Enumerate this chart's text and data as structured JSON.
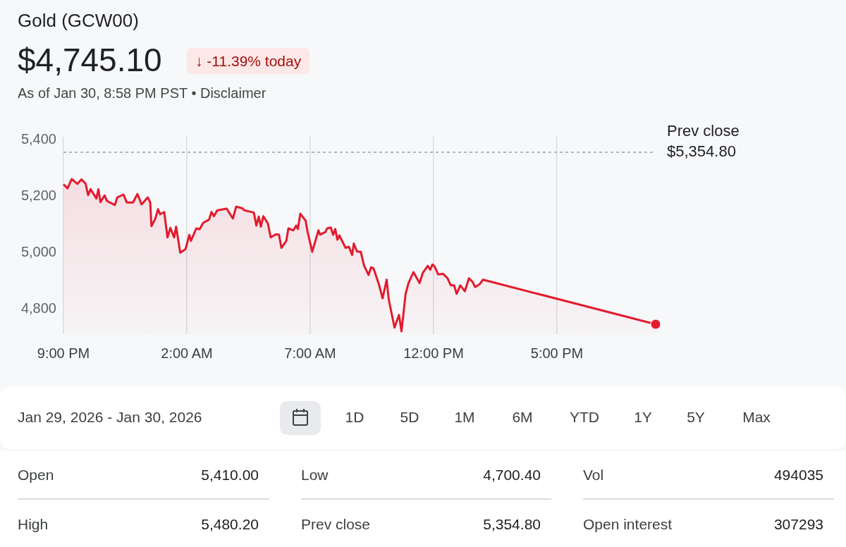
{
  "chart_data": {
    "type": "area",
    "title": "Gold (GCW00)",
    "subtitle": "$4,745.10",
    "annotations": [
      "↓ -11.39% today",
      "As of Jan 30, 8:58 PM PST • Disclaimer",
      "Jan 29, 2026 - Jan 30, 2026",
      "1D",
      "5D",
      "1M",
      "6M",
      "YTD",
      "1Y",
      "5Y",
      "Max",
      "Open",
      "5,410.00",
      "Low",
      "4,700.40",
      "Vol",
      "494035",
      "High",
      "5,480.20",
      "Prev close",
      "5,354.80",
      "Open interest",
      "307293"
    ],
    "xlim": [
      "2026-01-29T21:00",
      "2026-01-30T21:00"
    ],
    "xticks": [
      {
        "value": "2026-01-29T21:00",
        "label": "9:00 PM"
      },
      {
        "value": "2026-01-30T02:00",
        "label": "2:00 AM"
      },
      {
        "value": "2026-01-30T07:00",
        "label": "7:00 AM"
      },
      {
        "value": "2026-01-30T12:00",
        "label": "12:00 PM"
      },
      {
        "value": "2026-01-30T17:00",
        "label": "5:00 PM"
      }
    ],
    "ylim": [
      4710,
      5410
    ],
    "yticks": [
      {
        "value": 4800,
        "label": "4,800"
      },
      {
        "value": 5000,
        "label": "5,000"
      },
      {
        "value": 5200,
        "label": "5,200"
      },
      {
        "value": 5400,
        "label": "5,400"
      }
    ],
    "grid": "x",
    "legend": false,
    "ref_lines": [
      {
        "axis": "y",
        "value": 5354.8,
        "label": "Prev close\n$5,354.80",
        "color": "#9aa0a6",
        "line_style": "dashed"
      }
    ],
    "series": [
      {
        "color": "#e21b2d",
        "x": [
          "2026-01-29T21:00",
          "2026-01-29T21:10",
          "2026-01-29T21:20",
          "2026-01-29T21:34",
          "2026-01-29T21:44",
          "2026-01-29T21:54",
          "2026-01-29T22:00",
          "2026-01-29T22:06",
          "2026-01-29T22:20",
          "2026-01-29T22:25",
          "2026-01-29T22:30",
          "2026-01-29T22:40",
          "2026-01-29T22:46",
          "2026-01-29T23:05",
          "2026-01-29T23:11",
          "2026-01-29T23:26",
          "2026-01-29T23:34",
          "2026-01-29T23:49",
          "2026-01-30T00:00",
          "2026-01-30T00:10",
          "2026-01-30T00:25",
          "2026-01-30T00:31",
          "2026-01-30T00:34",
          "2026-01-30T00:43",
          "2026-01-30T00:50",
          "2026-01-30T00:55",
          "2026-01-30T01:05",
          "2026-01-30T01:13",
          "2026-01-30T01:20",
          "2026-01-30T01:29",
          "2026-01-30T01:34",
          "2026-01-30T01:44",
          "2026-01-30T01:57",
          "2026-01-30T02:06",
          "2026-01-30T02:10",
          "2026-01-30T02:23",
          "2026-01-30T02:31",
          "2026-01-30T02:40",
          "2026-01-30T02:54",
          "2026-01-30T03:00",
          "2026-01-30T03:06",
          "2026-01-30T03:14",
          "2026-01-30T03:37",
          "2026-01-30T03:52",
          "2026-01-30T04:00",
          "2026-01-30T04:14",
          "2026-01-30T04:20",
          "2026-01-30T04:43",
          "2026-01-30T04:49",
          "2026-01-30T04:55",
          "2026-01-30T05:00",
          "2026-01-30T05:06",
          "2026-01-30T05:17",
          "2026-01-30T05:24",
          "2026-01-30T05:37",
          "2026-01-30T05:44",
          "2026-01-30T05:50",
          "2026-01-30T06:02",
          "2026-01-30T06:07",
          "2026-01-30T06:19",
          "2026-01-30T06:26",
          "2026-01-30T06:30",
          "2026-01-30T06:36",
          "2026-01-30T06:49",
          "2026-01-30T06:54",
          "2026-01-30T07:05",
          "2026-01-30T07:20",
          "2026-01-30T07:24",
          "2026-01-30T07:37",
          "2026-01-30T07:41",
          "2026-01-30T07:50",
          "2026-01-30T07:56",
          "2026-01-30T08:01",
          "2026-01-30T08:06",
          "2026-01-30T08:11",
          "2026-01-30T08:26",
          "2026-01-30T08:34",
          "2026-01-30T08:42",
          "2026-01-30T08:46",
          "2026-01-30T08:54",
          "2026-01-30T09:03",
          "2026-01-30T09:11",
          "2026-01-30T09:22",
          "2026-01-30T09:28",
          "2026-01-30T09:34",
          "2026-01-30T09:47",
          "2026-01-30T09:56",
          "2026-01-30T10:06",
          "2026-01-30T10:11",
          "2026-01-30T10:25",
          "2026-01-30T10:36",
          "2026-01-30T10:42",
          "2026-01-30T10:52",
          "2026-01-30T10:59",
          "2026-01-30T11:11",
          "2026-01-30T11:26",
          "2026-01-30T11:34",
          "2026-01-30T11:46",
          "2026-01-30T11:52",
          "2026-01-30T11:57",
          "2026-01-30T12:03",
          "2026-01-30T12:11",
          "2026-01-30T12:23",
          "2026-01-30T12:34",
          "2026-01-30T12:42",
          "2026-01-30T12:50",
          "2026-01-30T12:56",
          "2026-01-30T13:05",
          "2026-01-30T13:16",
          "2026-01-30T13:26",
          "2026-01-30T13:35",
          "2026-01-30T13:41",
          "2026-01-30T13:52",
          "2026-01-30T14:00",
          "2026-01-30T21:00"
        ],
        "values": [
          5241,
          5227,
          5260,
          5243,
          5259,
          5243,
          5203,
          5224,
          5191,
          5224,
          5178,
          5202,
          5182,
          5168,
          5195,
          5205,
          5177,
          5177,
          5207,
          5170,
          5195,
          5177,
          5093,
          5118,
          5153,
          5135,
          5143,
          5053,
          5087,
          5053,
          5091,
          4999,
          5012,
          5062,
          5041,
          5085,
          5082,
          5105,
          5116,
          5143,
          5128,
          5149,
          5155,
          5120,
          5162,
          5157,
          5149,
          5141,
          5095,
          5127,
          5091,
          5128,
          5103,
          5053,
          5064,
          5063,
          5016,
          5041,
          5085,
          5078,
          5095,
          5083,
          5137,
          5112,
          5070,
          5002,
          5078,
          5063,
          5072,
          5085,
          5088,
          5062,
          5083,
          5045,
          5060,
          5016,
          5020,
          4991,
          5031,
          5003,
          5002,
          4953,
          4920,
          4947,
          4943,
          4887,
          4837,
          4903,
          4833,
          4733,
          4778,
          4720,
          4853,
          4891,
          4930,
          4891,
          4928,
          4952,
          4938,
          4957,
          4949,
          4922,
          4924,
          4908,
          4883,
          4883,
          4853,
          4883,
          4862,
          4908,
          4895,
          4877,
          4887,
          4903,
          4745
        ]
      },
      {
        "type": "scatter",
        "color": "#e21b2d",
        "marker": "circle",
        "x": [
          "2026-01-30T21:00"
        ],
        "values": [
          4745
        ]
      }
    ]
  }
}
